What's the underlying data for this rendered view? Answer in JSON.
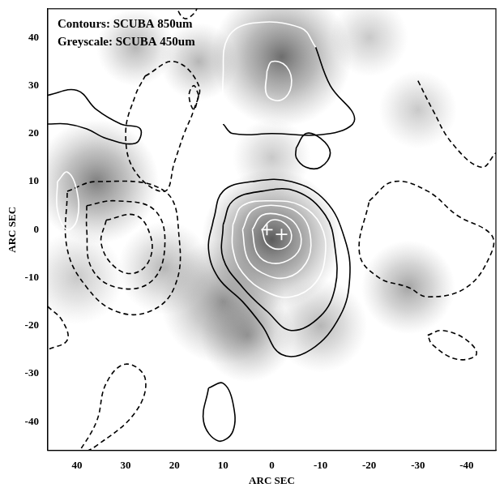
{
  "chart_data": {
    "type": "contour",
    "annotations": [
      "Contours: SCUBA 850um",
      "Greyscale: SCUBA 450um"
    ],
    "x_label": "ARC SEC",
    "y_label": "ARC SEC",
    "xlim": [
      46,
      -46
    ],
    "ylim": [
      -46,
      46
    ],
    "xticks": [
      40,
      30,
      20,
      10,
      0,
      -10,
      -20,
      -30,
      -40
    ],
    "yticks": [
      -40,
      -30,
      -20,
      -10,
      0,
      10,
      20,
      30,
      40
    ],
    "grid": false,
    "greyscale_450um": [
      {
        "x": 0,
        "y": -2,
        "radius": 9,
        "level": 0.9
      },
      {
        "x": -2,
        "y": 36,
        "radius": 9,
        "level": 0.8
      },
      {
        "x": 36,
        "y": 10,
        "radius": 8,
        "level": 0.7
      },
      {
        "x": 10,
        "y": -15,
        "radius": 8,
        "level": 0.6
      },
      {
        "x": 5,
        "y": -22,
        "radius": 6,
        "level": 0.5
      },
      {
        "x": -28,
        "y": -12,
        "radius": 6,
        "level": 0.5
      },
      {
        "x": -10,
        "y": -20,
        "radius": 6,
        "level": 0.4
      },
      {
        "x": 28,
        "y": 38,
        "radius": 5,
        "level": 0.4
      },
      {
        "x": -30,
        "y": 25,
        "radius": 5,
        "level": 0.3
      },
      {
        "x": 40,
        "y": -10,
        "radius": 6,
        "level": 0.3
      },
      {
        "x": 15,
        "y": 35,
        "radius": 5,
        "level": 0.4
      },
      {
        "x": -20,
        "y": 40,
        "radius": 5,
        "level": 0.3
      },
      {
        "x": 0,
        "y": 15,
        "radius": 5,
        "level": 0.3
      },
      {
        "x": 22,
        "y": -8,
        "radius": 6,
        "level": 0.4
      }
    ],
    "crosses": {
      "marker": "cross",
      "color": "white",
      "values": [
        [
          1,
          0
        ],
        [
          -2,
          -1
        ]
      ]
    },
    "series": [
      {
        "color": "black",
        "line_style": "solid",
        "values": [
          [
            12,
            2
          ],
          [
            10,
            8
          ],
          [
            4,
            10
          ],
          [
            -4,
            10
          ],
          [
            -11,
            6
          ],
          [
            -15,
            -2
          ],
          [
            -16,
            -10
          ],
          [
            -14,
            -18
          ],
          [
            -8,
            -25
          ],
          [
            -2,
            -26
          ],
          [
            2,
            -20
          ],
          [
            6,
            -15
          ],
          [
            11,
            -10
          ],
          [
            13,
            -4
          ],
          [
            12,
            2
          ]
        ]
      },
      {
        "color": "black",
        "line_style": "solid",
        "values": [
          [
            10,
            1
          ],
          [
            8,
            6
          ],
          [
            2,
            8
          ],
          [
            -5,
            8
          ],
          [
            -11,
            3
          ],
          [
            -13,
            -4
          ],
          [
            -13,
            -12
          ],
          [
            -10,
            -18
          ],
          [
            -4,
            -21
          ],
          [
            1,
            -17
          ],
          [
            6,
            -12
          ],
          [
            10,
            -6
          ],
          [
            10,
            1
          ]
        ]
      },
      {
        "color": "white",
        "line_style": "solid",
        "values": [
          [
            8,
            1
          ],
          [
            6,
            5
          ],
          [
            0,
            6
          ],
          [
            -6,
            5
          ],
          [
            -10,
            1
          ],
          [
            -11,
            -5
          ],
          [
            -9,
            -11
          ],
          [
            -4,
            -14
          ],
          [
            1,
            -13
          ],
          [
            6,
            -9
          ],
          [
            8,
            -4
          ],
          [
            8,
            1
          ]
        ]
      },
      {
        "color": "white",
        "line_style": "solid",
        "values": [
          [
            6,
            0
          ],
          [
            4,
            4
          ],
          [
            -1,
            5
          ],
          [
            -6,
            3
          ],
          [
            -8,
            -2
          ],
          [
            -7,
            -7
          ],
          [
            -3,
            -10
          ],
          [
            2,
            -9
          ],
          [
            5,
            -6
          ],
          [
            6,
            0
          ]
        ]
      },
      {
        "color": "white",
        "line_style": "solid",
        "values": [
          [
            4,
            0
          ],
          [
            2,
            3
          ],
          [
            -2,
            3
          ],
          [
            -5,
            1
          ],
          [
            -6,
            -3
          ],
          [
            -4,
            -6
          ],
          [
            0,
            -7
          ],
          [
            3,
            -5
          ],
          [
            4,
            0
          ]
        ]
      },
      {
        "color": "white",
        "line_style": "solid",
        "values": [
          [
            2,
            0
          ],
          [
            0,
            2
          ],
          [
            -3,
            1
          ],
          [
            -4,
            -2
          ],
          [
            -2,
            -4
          ],
          [
            1,
            -3
          ],
          [
            2,
            0
          ]
        ]
      },
      {
        "color": "white",
        "line_style": "solid",
        "values": [
          [
            10,
            22
          ],
          [
            10,
            32
          ],
          [
            9,
            40
          ],
          [
            4,
            43
          ],
          [
            -6,
            42
          ],
          [
            -9,
            38
          ]
        ]
      },
      {
        "color": "black",
        "line_style": "solid",
        "values": [
          [
            -9,
            38
          ],
          [
            -12,
            30
          ],
          [
            -17,
            23
          ],
          [
            -12,
            20
          ],
          [
            0,
            20
          ],
          [
            8,
            20
          ],
          [
            10,
            22
          ]
        ]
      },
      {
        "color": "white",
        "line_style": "solid",
        "values": [
          [
            1,
            33
          ],
          [
            0,
            35
          ],
          [
            -3,
            34
          ],
          [
            -4,
            30
          ],
          [
            -2,
            27
          ],
          [
            1,
            28
          ],
          [
            1,
            33
          ]
        ]
      },
      {
        "color": "black",
        "line_style": "solid",
        "values": [
          [
            -5,
            17
          ],
          [
            -7,
            20
          ],
          [
            -10,
            19
          ],
          [
            -12,
            16
          ],
          [
            -10,
            13
          ],
          [
            -7,
            13
          ],
          [
            -5,
            15
          ],
          [
            -5,
            17
          ]
        ]
      },
      {
        "color": "black",
        "line_style": "solid",
        "values": [
          [
            46,
            28
          ],
          [
            40,
            29
          ],
          [
            36,
            25
          ],
          [
            31,
            22
          ],
          [
            27,
            21
          ],
          [
            28,
            18
          ],
          [
            34,
            19
          ],
          [
            38,
            21
          ],
          [
            42,
            22
          ],
          [
            46,
            22
          ]
        ]
      },
      {
        "color": "white",
        "line_style": "solid",
        "values": [
          [
            44,
            10
          ],
          [
            42,
            12
          ],
          [
            40,
            8
          ],
          [
            40,
            2
          ],
          [
            42,
            0
          ],
          [
            44,
            4
          ],
          [
            44,
            10
          ]
        ]
      },
      {
        "color": "black",
        "line_style": "solid",
        "values": [
          [
            13,
            -33
          ],
          [
            10,
            -32
          ],
          [
            8,
            -36
          ],
          [
            8,
            -42
          ],
          [
            11,
            -44
          ],
          [
            14,
            -40
          ],
          [
            13,
            -33
          ]
        ]
      },
      {
        "color": "black",
        "line_style": "dashed",
        "values": [
          [
            26,
            32
          ],
          [
            20,
            35
          ],
          [
            15,
            30
          ],
          [
            16,
            25
          ],
          [
            18,
            20
          ],
          [
            20,
            14
          ],
          [
            22,
            8
          ],
          [
            28,
            12
          ],
          [
            30,
            20
          ],
          [
            28,
            28
          ],
          [
            26,
            32
          ]
        ]
      },
      {
        "color": "black",
        "line_style": "dashed",
        "values": [
          [
            15,
            28
          ],
          [
            16,
            30
          ],
          [
            17,
            28
          ],
          [
            16,
            25
          ],
          [
            15,
            28
          ]
        ]
      },
      {
        "color": "black",
        "line_style": "dashed",
        "values": [
          [
            42,
            8
          ],
          [
            36,
            10
          ],
          [
            22,
            8
          ],
          [
            19,
            -2
          ],
          [
            20,
            -12
          ],
          [
            25,
            -17
          ],
          [
            32,
            -17
          ],
          [
            38,
            -12
          ],
          [
            42,
            -4
          ],
          [
            42,
            8
          ]
        ]
      },
      {
        "color": "black",
        "line_style": "dashed",
        "values": [
          [
            38,
            5
          ],
          [
            32,
            6
          ],
          [
            24,
            4
          ],
          [
            22,
            -4
          ],
          [
            25,
            -11
          ],
          [
            32,
            -12
          ],
          [
            37,
            -8
          ],
          [
            38,
            0
          ],
          [
            38,
            5
          ]
        ]
      },
      {
        "color": "black",
        "line_style": "dashed",
        "values": [
          [
            34,
            2
          ],
          [
            28,
            3
          ],
          [
            25,
            -1
          ],
          [
            25,
            -6
          ],
          [
            28,
            -9
          ],
          [
            32,
            -8
          ],
          [
            35,
            -3
          ],
          [
            34,
            2
          ]
        ]
      },
      {
        "color": "black",
        "line_style": "dashed",
        "values": [
          [
            -20,
            6
          ],
          [
            -25,
            10
          ],
          [
            -32,
            8
          ],
          [
            -38,
            3
          ],
          [
            -45,
            -1
          ],
          [
            -45,
            -5
          ],
          [
            -40,
            -12
          ],
          [
            -32,
            -14
          ],
          [
            -28,
            -12
          ],
          [
            -22,
            -10
          ],
          [
            -18,
            -5
          ],
          [
            -20,
            6
          ]
        ]
      },
      {
        "color": "black",
        "line_style": "dashed",
        "values": [
          [
            -30,
            31
          ],
          [
            -33,
            25
          ],
          [
            -37,
            18
          ],
          [
            -43,
            13
          ],
          [
            -46,
            16
          ]
        ]
      },
      {
        "color": "black",
        "line_style": "dashed",
        "values": [
          [
            -32,
            -22
          ],
          [
            -35,
            -21
          ],
          [
            -40,
            -23
          ],
          [
            -42,
            -26
          ],
          [
            -38,
            -27
          ],
          [
            -33,
            -24
          ],
          [
            -32,
            -22
          ]
        ]
      },
      {
        "color": "black",
        "line_style": "dashed",
        "values": [
          [
            46,
            -16
          ],
          [
            43,
            -19
          ],
          [
            42,
            -23
          ],
          [
            46,
            -25
          ]
        ]
      },
      {
        "color": "black",
        "line_style": "dashed",
        "values": [
          [
            40,
            -47
          ],
          [
            36,
            -40
          ],
          [
            34,
            -32
          ],
          [
            30,
            -28
          ],
          [
            26,
            -31
          ],
          [
            28,
            -38
          ],
          [
            36,
            -45
          ],
          [
            40,
            -47
          ]
        ]
      },
      {
        "color": "black",
        "line_style": "dashed",
        "values": [
          [
            20,
            47
          ],
          [
            18,
            44
          ],
          [
            16,
            45
          ],
          [
            15,
            47
          ]
        ]
      }
    ]
  }
}
